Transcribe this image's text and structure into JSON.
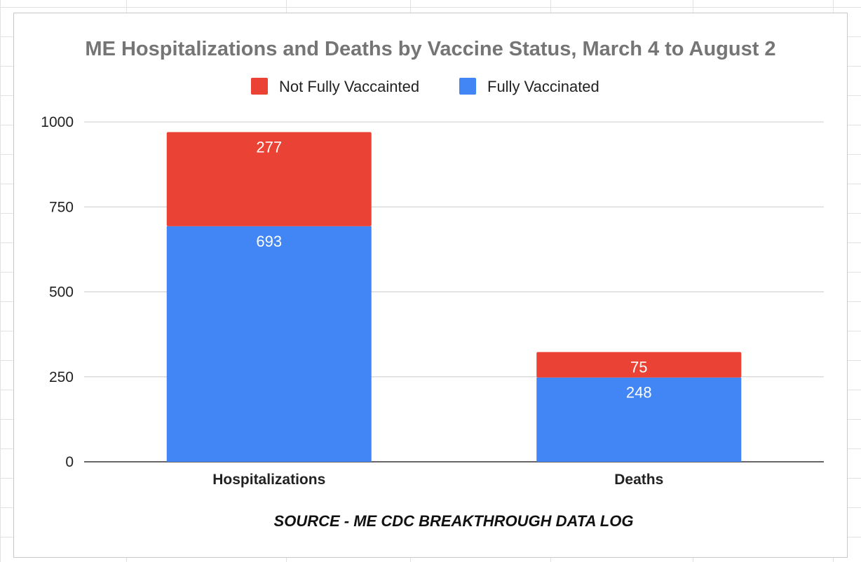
{
  "chart_data": {
    "type": "bar",
    "stacked": true,
    "title": "ME Hospitalizations and Deaths by Vaccine Status, March 4 to August 2",
    "categories": [
      "Hospitalizations",
      "Deaths"
    ],
    "series": [
      {
        "name": "Fully Vaccinated",
        "values": [
          693,
          248
        ],
        "color": "#4285f4"
      },
      {
        "name": "Not Fully Vaccainted",
        "values": [
          277,
          75
        ],
        "color": "#ea4335"
      }
    ],
    "legend_order": [
      "Not Fully Vaccainted",
      "Fully Vaccinated"
    ],
    "legend_position": "top",
    "ylim": [
      0,
      1000
    ],
    "yticks": [
      "0",
      "250",
      "500",
      "750",
      "1000"
    ],
    "grid": true,
    "annotation": "SOURCE - ME CDC BREAKTHROUGH DATA LOG"
  }
}
